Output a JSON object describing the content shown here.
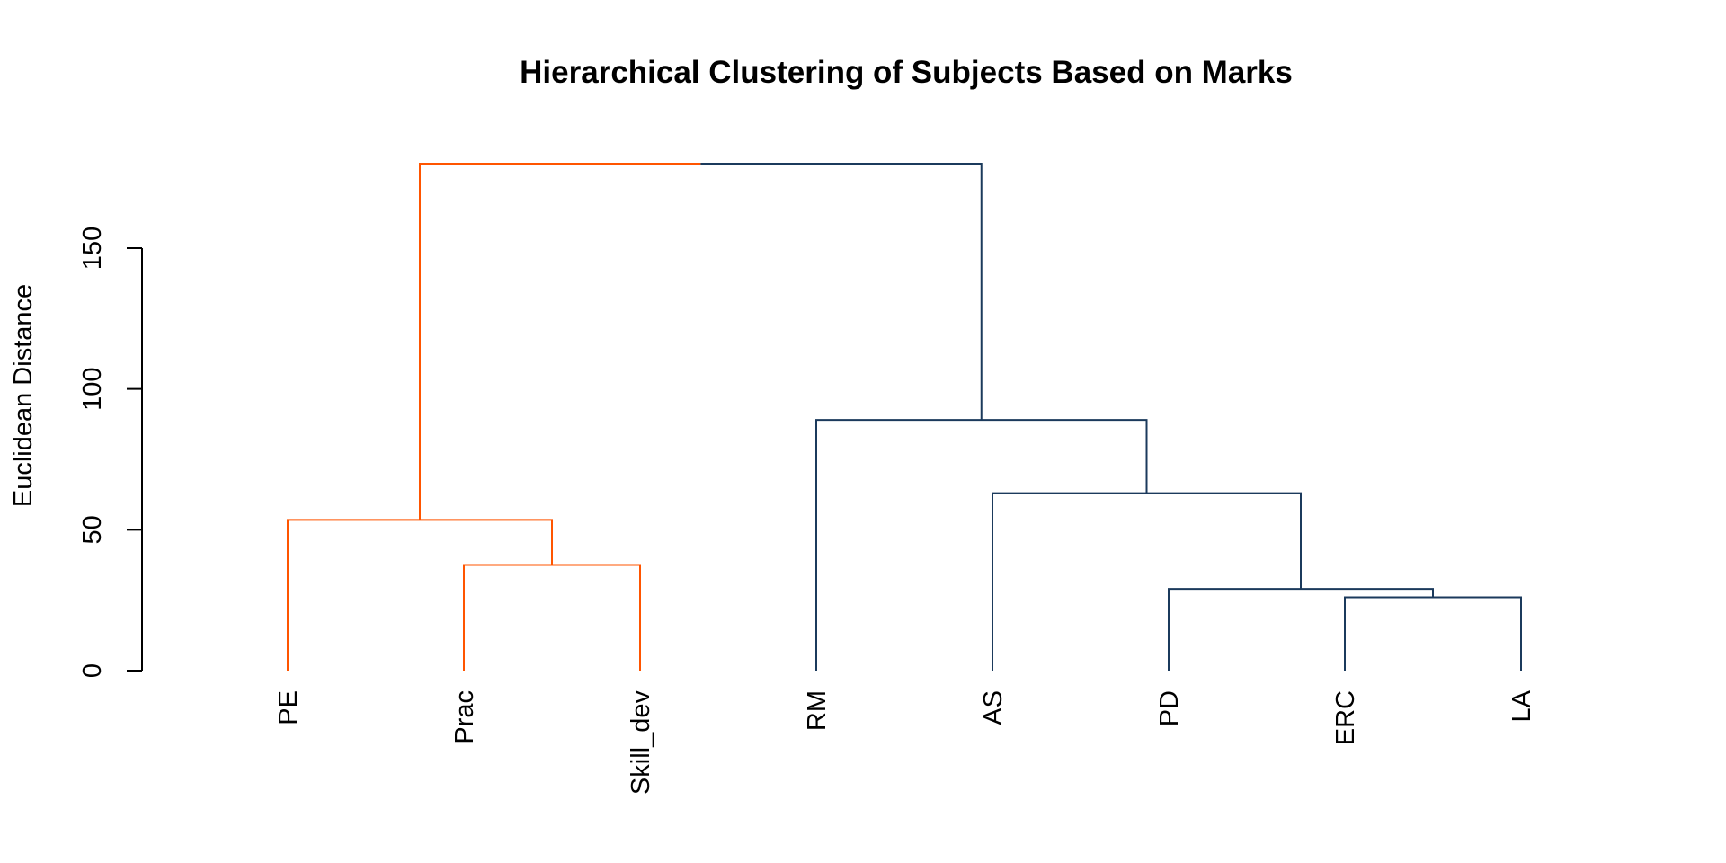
{
  "chart_data": {
    "type": "dendrogram",
    "title": "Hierarchical Clustering of Subjects Based on Marks",
    "xlabel": "",
    "ylabel": "Euclidean Distance",
    "ylim": [
      0,
      180
    ],
    "yticks": [
      0,
      50,
      100,
      150
    ],
    "grid": false,
    "leaves": [
      "PE",
      "Prac",
      "Skill_dev",
      "RM",
      "AS",
      "PD",
      "ERC",
      "LA"
    ],
    "merges": [
      {
        "left": "ERC",
        "right": "LA",
        "height": 26
      },
      {
        "left": "PD",
        "right": "ERC+LA",
        "height": 29
      },
      {
        "left": "Prac",
        "right": "Skill_dev",
        "height": 37.5
      },
      {
        "left": "PE",
        "right": "Prac+Skill_dev",
        "height": 53.5
      },
      {
        "left": "AS",
        "right": "PD+ERC+LA",
        "height": 63
      },
      {
        "left": "RM",
        "right": "AS+PD+ERC+LA",
        "height": 89
      },
      {
        "left": "PE+Prac+Skill_dev",
        "right": "RM+AS+PD+ERC+LA",
        "height": 180
      }
    ],
    "clusters": [
      {
        "members": [
          "PE",
          "Prac",
          "Skill_dev"
        ],
        "color": "#FF5500"
      },
      {
        "members": [
          "RM",
          "AS",
          "PD",
          "ERC",
          "LA"
        ],
        "color": "#1B3A5C"
      }
    ]
  }
}
